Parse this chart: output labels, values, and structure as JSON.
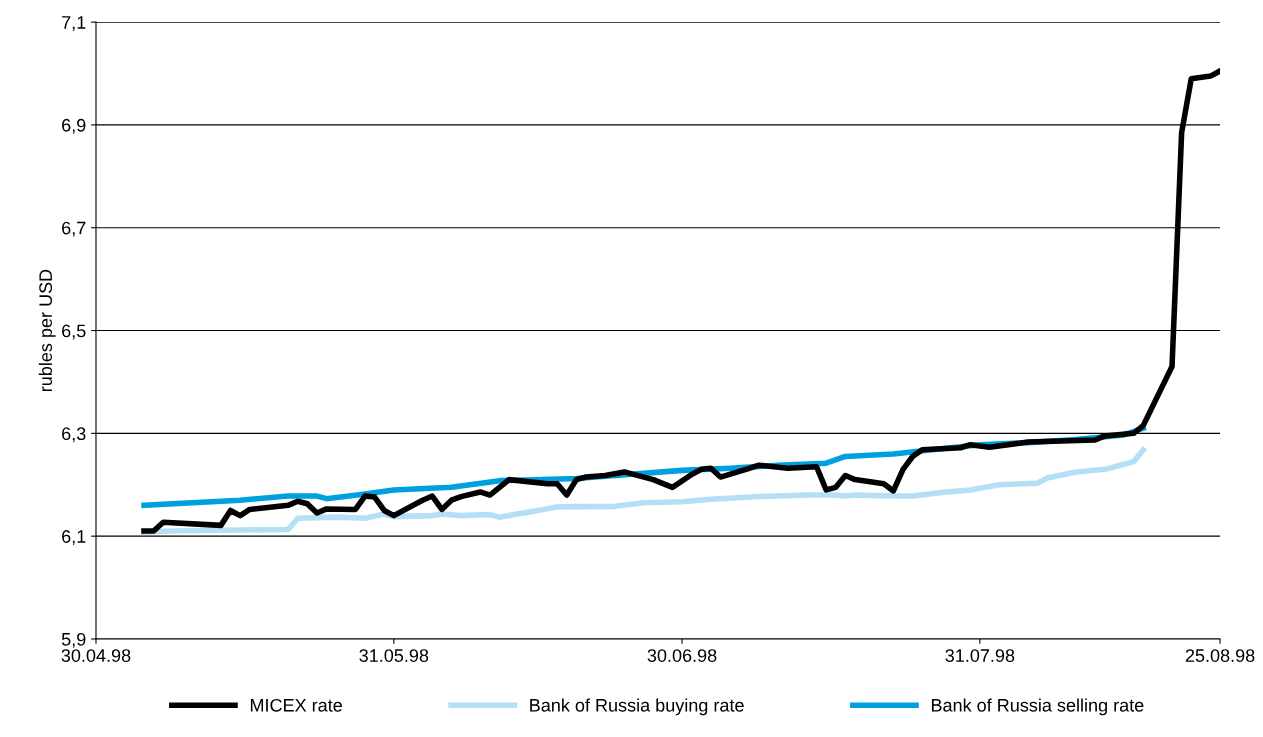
{
  "chart_data": {
    "type": "line",
    "ylabel": "rubles per USD",
    "ylim": [
      5.9,
      7.1
    ],
    "yticks": [
      {
        "value": 5.9,
        "label": "5,9"
      },
      {
        "value": 6.1,
        "label": "6,1"
      },
      {
        "value": 6.3,
        "label": "6,3"
      },
      {
        "value": 6.5,
        "label": "6,5"
      },
      {
        "value": 6.7,
        "label": "6,7"
      },
      {
        "value": 6.9,
        "label": "6,9"
      },
      {
        "value": 7.1,
        "label": "7,1"
      }
    ],
    "xlim": [
      "1998-04-30",
      "1998-08-25"
    ],
    "xticks": [
      {
        "value": "1998-04-30",
        "label": "30.04.98"
      },
      {
        "value": "1998-05-31",
        "label": "31.05.98"
      },
      {
        "value": "1998-06-30",
        "label": "30.06.98"
      },
      {
        "value": "1998-07-31",
        "label": "31.07.98"
      },
      {
        "value": "1998-08-25",
        "label": "25.08.98"
      }
    ],
    "grid": "y",
    "legend": "bottom",
    "marker": "none",
    "line_style": "solid",
    "series": [
      {
        "name": "MICEX rate",
        "color": "#000000",
        "x": [
          "1998-05-05",
          "1998-05-06",
          "1998-05-07",
          "1998-05-13",
          "1998-05-14",
          "1998-05-15",
          "1998-05-16",
          "1998-05-20",
          "1998-05-21",
          "1998-05-22",
          "1998-05-23",
          "1998-05-24",
          "1998-05-27",
          "1998-05-28",
          "1998-05-29",
          "1998-05-30",
          "1998-05-31",
          "1998-06-03",
          "1998-06-04",
          "1998-06-05",
          "1998-06-06",
          "1998-06-07",
          "1998-06-09",
          "1998-06-10",
          "1998-06-12",
          "1998-06-16",
          "1998-06-17",
          "1998-06-18",
          "1998-06-19",
          "1998-06-20",
          "1998-06-22",
          "1998-06-24",
          "1998-06-27",
          "1998-06-29",
          "1998-07-01",
          "1998-07-02",
          "1998-07-03",
          "1998-07-04",
          "1998-07-07",
          "1998-07-08",
          "1998-07-11",
          "1998-07-14",
          "1998-07-15",
          "1998-07-16",
          "1998-07-17",
          "1998-07-18",
          "1998-07-21",
          "1998-07-22",
          "1998-07-23",
          "1998-07-24",
          "1998-07-25",
          "1998-07-29",
          "1998-07-30",
          "1998-08-01",
          "1998-08-05",
          "1998-08-12",
          "1998-08-13",
          "1998-08-16",
          "1998-08-17",
          "1998-08-20",
          "1998-08-21",
          "1998-08-22",
          "1998-08-24",
          "1998-08-25"
        ],
        "values": [
          6.11,
          6.11,
          6.127,
          6.121,
          6.15,
          6.14,
          6.152,
          6.16,
          6.168,
          6.163,
          6.145,
          6.153,
          6.152,
          6.178,
          6.176,
          6.15,
          6.14,
          6.17,
          6.178,
          6.152,
          6.17,
          6.177,
          6.186,
          6.18,
          6.21,
          6.202,
          6.202,
          6.18,
          6.21,
          6.215,
          6.218,
          6.225,
          6.21,
          6.195,
          6.22,
          6.23,
          6.232,
          6.215,
          6.232,
          6.238,
          6.232,
          6.235,
          6.19,
          6.195,
          6.218,
          6.21,
          6.202,
          6.188,
          6.23,
          6.255,
          6.268,
          6.272,
          6.278,
          6.273,
          6.283,
          6.287,
          6.295,
          6.3,
          6.315,
          6.43,
          6.885,
          6.99,
          6.995,
          7.005
        ]
      },
      {
        "name": "Bank of Russia buying rate",
        "color": "#b3e0f5",
        "x": [
          "1998-05-05",
          "1998-05-08",
          "1998-05-15",
          "1998-05-20",
          "1998-05-21",
          "1998-05-25",
          "1998-05-28",
          "1998-05-30",
          "1998-05-31",
          "1998-06-04",
          "1998-06-05",
          "1998-06-07",
          "1998-06-10",
          "1998-06-11",
          "1998-06-15",
          "1998-06-17",
          "1998-06-23",
          "1998-06-26",
          "1998-06-30",
          "1998-07-03",
          "1998-07-08",
          "1998-07-10",
          "1998-07-13",
          "1998-07-16",
          "1998-07-17",
          "1998-07-18",
          "1998-07-22",
          "1998-07-24",
          "1998-07-27",
          "1998-07-30",
          "1998-08-02",
          "1998-08-06",
          "1998-08-07",
          "1998-08-10",
          "1998-08-13",
          "1998-08-15",
          "1998-08-16",
          "1998-08-17"
        ],
        "values": [
          6.108,
          6.11,
          6.112,
          6.113,
          6.135,
          6.137,
          6.135,
          6.143,
          6.138,
          6.14,
          6.143,
          6.14,
          6.142,
          6.137,
          6.15,
          6.157,
          6.158,
          6.165,
          6.167,
          6.172,
          6.177,
          6.178,
          6.18,
          6.18,
          6.178,
          6.18,
          6.178,
          6.178,
          6.185,
          6.19,
          6.2,
          6.203,
          6.213,
          6.225,
          6.23,
          6.24,
          6.245,
          6.268
        ]
      },
      {
        "name": "Bank of Russia selling rate",
        "color": "#00a0e0",
        "x": [
          "1998-05-05",
          "1998-05-15",
          "1998-05-20",
          "1998-05-23",
          "1998-05-24",
          "1998-05-28",
          "1998-05-31",
          "1998-06-06",
          "1998-06-11",
          "1998-06-19",
          "1998-06-21",
          "1998-06-30",
          "1998-07-05",
          "1998-07-10",
          "1998-07-15",
          "1998-07-17",
          "1998-07-22",
          "1998-07-26",
          "1998-07-31",
          "1998-08-05",
          "1998-08-10",
          "1998-08-15",
          "1998-08-17"
        ],
        "values": [
          6.16,
          6.17,
          6.178,
          6.178,
          6.173,
          6.182,
          6.19,
          6.195,
          6.208,
          6.212,
          6.215,
          6.228,
          6.232,
          6.238,
          6.242,
          6.255,
          6.26,
          6.268,
          6.278,
          6.282,
          6.288,
          6.297,
          6.31
        ]
      }
    ]
  }
}
